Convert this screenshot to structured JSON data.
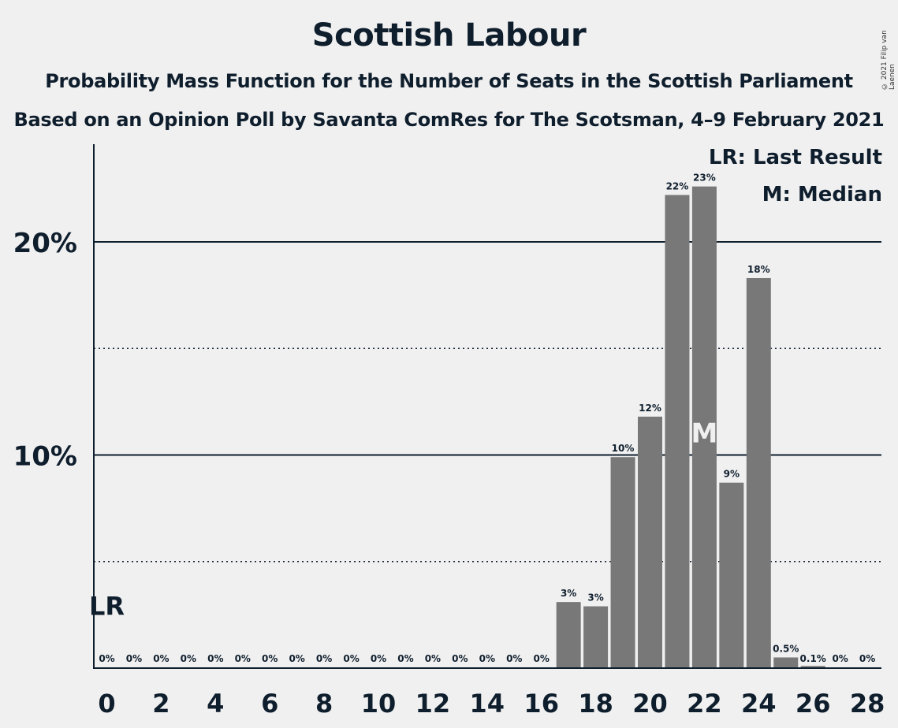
{
  "title": "Scottish Labour",
  "subtitle_1": "Probability Mass Function for the Number of Seats in the Scottish Parliament",
  "subtitle_2": "Based on an Opinion Poll by Savanta ComRes for The Scotsman, 4–9 February 2021",
  "copyright": "© 2021 Filip van Laenen",
  "legend": {
    "lr": "LR: Last Result",
    "m": "M: Median"
  },
  "colors": {
    "bar": "#787878",
    "text": "#0f1e2d",
    "background": "#f0f0f0",
    "median_marker": "#f0f0f0"
  },
  "chart_data": {
    "type": "bar",
    "categories": [
      0,
      1,
      2,
      3,
      4,
      5,
      6,
      7,
      8,
      9,
      10,
      11,
      12,
      13,
      14,
      15,
      16,
      17,
      18,
      19,
      20,
      21,
      22,
      23,
      24,
      25,
      26,
      27,
      28
    ],
    "values": [
      0,
      0,
      0,
      0,
      0,
      0,
      0,
      0,
      0,
      0,
      0,
      0,
      0,
      0,
      0,
      0,
      0,
      3.1,
      2.9,
      9.9,
      11.8,
      22.2,
      22.6,
      8.7,
      18.3,
      0.5,
      0.1,
      0,
      0
    ],
    "value_labels": [
      "0%",
      "0%",
      "0%",
      "0%",
      "0%",
      "0%",
      "0%",
      "0%",
      "0%",
      "0%",
      "0%",
      "0%",
      "0%",
      "0%",
      "0%",
      "0%",
      "0%",
      "3%",
      "3%",
      "10%",
      "12%",
      "22%",
      "23%",
      "9%",
      "18%",
      "0.5%",
      "0.1%",
      "0%",
      "0%"
    ],
    "x_tick_labels": [
      "0",
      "2",
      "4",
      "6",
      "8",
      "10",
      "12",
      "14",
      "16",
      "18",
      "20",
      "22",
      "24",
      "26",
      "28"
    ],
    "y_tick_labels": [
      "10%",
      "20%"
    ],
    "ylim": [
      0,
      24
    ],
    "solid_gridlines": [
      10,
      20
    ],
    "dotted_gridlines": [
      5,
      15
    ],
    "last_result": {
      "seats": 0,
      "label": "LR"
    },
    "median": {
      "seats": 22,
      "label": "M"
    }
  }
}
